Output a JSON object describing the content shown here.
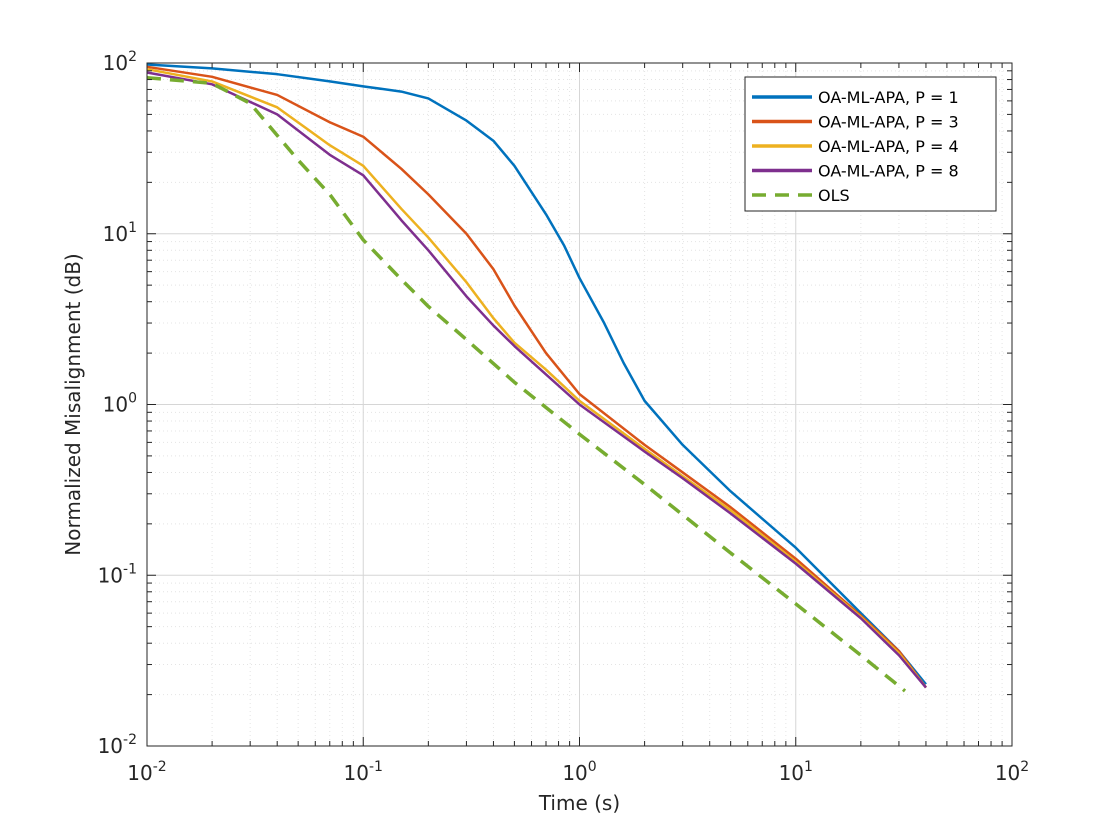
{
  "chart_data": {
    "type": "line",
    "title": "",
    "xlabel": "Time (s)",
    "ylabel": "Normalized Misalignment (dB)",
    "xscale": "log",
    "yscale": "log",
    "xlim": [
      0.01,
      100
    ],
    "ylim": [
      0.01,
      100
    ],
    "x_ticks": [
      {
        "base": "10",
        "exp": "-2"
      },
      {
        "base": "10",
        "exp": "-1"
      },
      {
        "base": "10",
        "exp": "0"
      },
      {
        "base": "10",
        "exp": "1"
      },
      {
        "base": "10",
        "exp": "2"
      }
    ],
    "y_ticks": [
      {
        "base": "10",
        "exp": "-2"
      },
      {
        "base": "10",
        "exp": "-1"
      },
      {
        "base": "10",
        "exp": "0"
      },
      {
        "base": "10",
        "exp": "1"
      },
      {
        "base": "10",
        "exp": "2"
      }
    ],
    "grid": true,
    "minor_grid": true,
    "legend_position": "top-right",
    "series": [
      {
        "name": "OA-ML-APA, P = 1",
        "color": "#0072BD",
        "style": "solid",
        "points": [
          [
            0.01,
            98
          ],
          [
            0.02,
            93
          ],
          [
            0.04,
            86
          ],
          [
            0.07,
            78
          ],
          [
            0.1,
            73
          ],
          [
            0.15,
            68
          ],
          [
            0.2,
            62
          ],
          [
            0.3,
            46
          ],
          [
            0.4,
            35
          ],
          [
            0.5,
            25
          ],
          [
            0.7,
            13
          ],
          [
            0.85,
            8.5
          ],
          [
            1,
            5.5
          ],
          [
            1.3,
            3
          ],
          [
            1.6,
            1.75
          ],
          [
            2,
            1.05
          ],
          [
            3,
            0.58
          ],
          [
            5,
            0.31
          ],
          [
            10,
            0.145
          ],
          [
            20,
            0.06
          ],
          [
            30,
            0.036
          ],
          [
            40,
            0.023
          ]
        ]
      },
      {
        "name": "OA-ML-APA, P = 3",
        "color": "#D95319",
        "style": "solid",
        "points": [
          [
            0.01,
            95
          ],
          [
            0.02,
            83
          ],
          [
            0.04,
            65
          ],
          [
            0.07,
            45
          ],
          [
            0.1,
            37
          ],
          [
            0.15,
            24
          ],
          [
            0.2,
            17
          ],
          [
            0.3,
            10
          ],
          [
            0.4,
            6.2
          ],
          [
            0.5,
            3.8
          ],
          [
            0.7,
            2
          ],
          [
            1,
            1.15
          ],
          [
            2,
            0.58
          ],
          [
            3,
            0.4
          ],
          [
            5,
            0.25
          ],
          [
            10,
            0.125
          ],
          [
            20,
            0.058
          ],
          [
            30,
            0.036
          ],
          [
            40,
            0.022
          ]
        ]
      },
      {
        "name": "OA-ML-APA, P = 4",
        "color": "#EDB120",
        "style": "solid",
        "points": [
          [
            0.01,
            92
          ],
          [
            0.02,
            78
          ],
          [
            0.04,
            55
          ],
          [
            0.07,
            33
          ],
          [
            0.1,
            25
          ],
          [
            0.15,
            14
          ],
          [
            0.2,
            9.5
          ],
          [
            0.3,
            5.2
          ],
          [
            0.4,
            3.2
          ],
          [
            0.5,
            2.3
          ],
          [
            0.7,
            1.6
          ],
          [
            1,
            1.05
          ],
          [
            2,
            0.55
          ],
          [
            3,
            0.38
          ],
          [
            5,
            0.24
          ],
          [
            10,
            0.12
          ],
          [
            20,
            0.057
          ],
          [
            30,
            0.035
          ],
          [
            40,
            0.022
          ]
        ]
      },
      {
        "name": "OA-ML-APA, P = 8",
        "color": "#7E2F8E",
        "style": "solid",
        "points": [
          [
            0.01,
            88
          ],
          [
            0.02,
            75
          ],
          [
            0.04,
            50
          ],
          [
            0.07,
            29
          ],
          [
            0.1,
            22
          ],
          [
            0.15,
            12
          ],
          [
            0.2,
            8
          ],
          [
            0.3,
            4.3
          ],
          [
            0.4,
            2.9
          ],
          [
            0.5,
            2.2
          ],
          [
            0.7,
            1.5
          ],
          [
            1,
            1
          ],
          [
            2,
            0.53
          ],
          [
            3,
            0.37
          ],
          [
            5,
            0.23
          ],
          [
            10,
            0.117
          ],
          [
            20,
            0.056
          ],
          [
            30,
            0.034
          ],
          [
            40,
            0.022
          ]
        ]
      },
      {
        "name": "OLS",
        "color": "#77AC30",
        "style": "dashed",
        "points": [
          [
            0.01,
            82
          ],
          [
            0.02,
            76
          ],
          [
            0.03,
            58
          ],
          [
            0.05,
            27
          ],
          [
            0.07,
            17
          ],
          [
            0.1,
            9.2
          ],
          [
            0.15,
            5.4
          ],
          [
            0.2,
            3.75
          ],
          [
            0.3,
            2.4
          ],
          [
            0.5,
            1.35
          ],
          [
            1,
            0.67
          ],
          [
            2,
            0.34
          ],
          [
            5,
            0.135
          ],
          [
            10,
            0.068
          ],
          [
            20,
            0.034
          ],
          [
            32,
            0.021
          ]
        ]
      }
    ]
  }
}
